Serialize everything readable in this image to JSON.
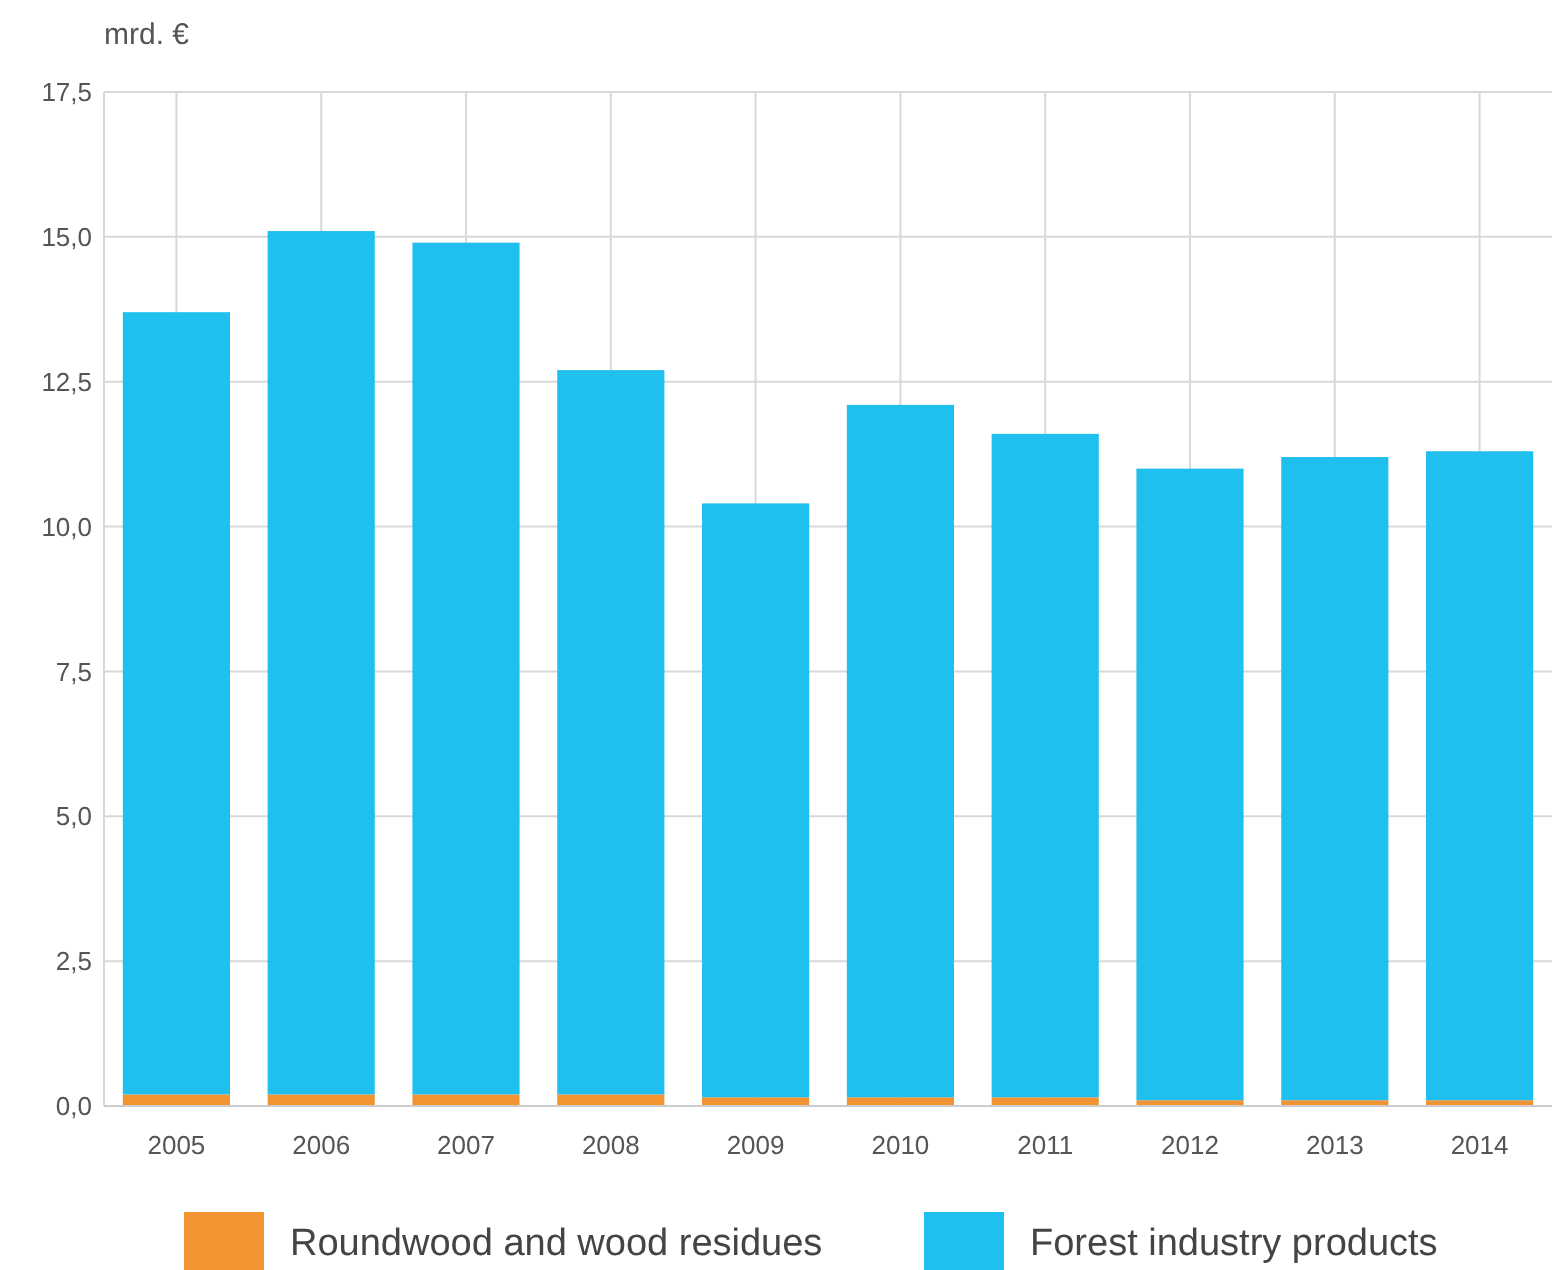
{
  "chart_data": {
    "type": "bar",
    "ylabel": "mrd. €",
    "categories": [
      "2005",
      "2006",
      "2007",
      "2008",
      "2009",
      "2010",
      "2011",
      "2012",
      "2013",
      "2014"
    ],
    "series": [
      {
        "name": "Roundwood and wood residues",
        "color": "#f39433",
        "values": [
          0.2,
          0.2,
          0.2,
          0.2,
          0.15,
          0.15,
          0.15,
          0.1,
          0.1,
          0.1
        ]
      },
      {
        "name": "Forest industry products",
        "color": "#1fbfee",
        "values": [
          13.5,
          14.9,
          14.7,
          12.5,
          10.25,
          11.95,
          11.45,
          10.9,
          11.1,
          11.2
        ]
      }
    ],
    "stacked": true,
    "ylim": [
      0,
      17.5
    ],
    "yticks": [
      {
        "value": 0,
        "label": "0,0"
      },
      {
        "value": 2.5,
        "label": "2,5"
      },
      {
        "value": 5,
        "label": "5,0"
      },
      {
        "value": 7.5,
        "label": "7,5"
      },
      {
        "value": 10,
        "label": "10,0"
      },
      {
        "value": 12.5,
        "label": "12,5"
      },
      {
        "value": 15,
        "label": "15,0"
      },
      {
        "value": 17.5,
        "label": "17,5"
      }
    ],
    "grid": true,
    "legend": "bottom"
  }
}
